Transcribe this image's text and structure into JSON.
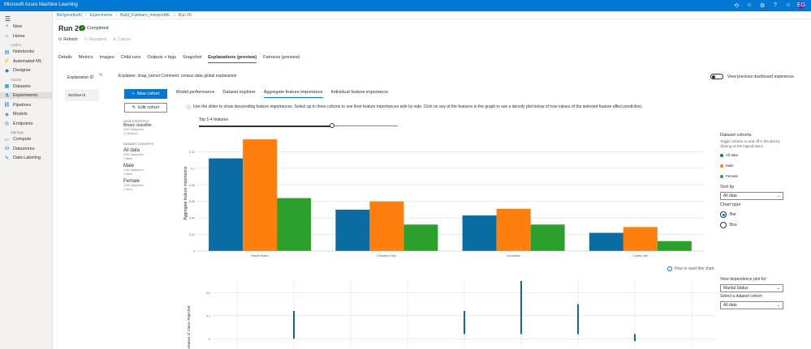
{
  "app": {
    "title": "Microsoft Azure Machine Learning"
  },
  "topbar": {
    "avatar": "EG",
    "icons": [
      "history-icon",
      "smile-icon",
      "gear-icon",
      "help-icon",
      "smile-icon",
      "user-icon"
    ]
  },
  "sidebar": {
    "items": [
      {
        "label": "New",
        "icon": "+"
      },
      {
        "label": "Home",
        "icon": "⌂"
      },
      {
        "section": "Author"
      },
      {
        "label": "Notebooks",
        "icon": "▤"
      },
      {
        "label": "Automated ML",
        "icon": "⚡"
      },
      {
        "label": "Designer",
        "icon": "◆"
      },
      {
        "section": "Assets"
      },
      {
        "label": "Datasets",
        "icon": "▦"
      },
      {
        "label": "Experiments",
        "icon": "⚗",
        "active": true
      },
      {
        "label": "Pipelines",
        "icon": "⛓"
      },
      {
        "label": "Models",
        "icon": "◈"
      },
      {
        "label": "Endpoints",
        "icon": "◎"
      },
      {
        "section": "Manage"
      },
      {
        "label": "Compute",
        "icon": "▭"
      },
      {
        "label": "Datastores",
        "icon": "⛁"
      },
      {
        "label": "Data Labeling",
        "icon": "✎"
      }
    ]
  },
  "breadcrumb": [
    "BerlginsdevAI",
    "Experiments",
    "Build_Fairlearn_InterpretML",
    "Run 20"
  ],
  "run": {
    "title": "Run 20",
    "status": "Completed"
  },
  "actions": {
    "refresh": "Refresh",
    "resubmit": "Resubmit",
    "cancel": "Cancel"
  },
  "tabs": [
    "Details",
    "Metrics",
    "Images",
    "Child runs",
    "Outputs + logs",
    "Snapshot",
    "Explanations (preview)",
    "Fairness (preview)"
  ],
  "active_tab": "Explanations (preview)",
  "explanations": {
    "header": "Explanation ID",
    "id": "962f36e7d"
  },
  "explainer": {
    "label": "Explainer:",
    "value": "shap_kernel",
    "comment_label": "Comment:",
    "comment": "census data global explanation"
  },
  "toggle_label": "View previous dashboard experience",
  "buttons": {
    "new_cohort": "New cohort",
    "edit_cohort": "Edit cohort"
  },
  "stats": {
    "data_statistics": "DATA STATISTICS",
    "classifier": "Binary classifier",
    "datapoints": "3260 datapoints",
    "features": "12 features",
    "cohorts_title": "DATASET COHORTS",
    "cohorts": [
      {
        "name": "All data",
        "datapoints": "3260 datapoints",
        "filters": "0 filters"
      },
      {
        "name": "Male",
        "datapoints": "2164 datapoints",
        "filters": "1 filters"
      },
      {
        "name": "Female",
        "datapoints": "1096 datapoints",
        "filters": "1 filters"
      }
    ]
  },
  "subtabs": [
    "Model performance",
    "Dataset explorer",
    "Aggregate feature importance",
    "Individual feature importance"
  ],
  "active_subtab": "Aggregate feature importance",
  "hint": "Use the slider to show descending feature importances. Select up to three cohorts to see their feature importances side by side. Click on any of the features in the graph to see a density plot below of how values of the selected feature affect prediction.",
  "slider": {
    "label": "Top 1-4 features",
    "fraction": 0.67
  },
  "legend": {
    "title": "Dataset cohorts",
    "subtitle": "Toggle cohorts on and off in the plot by clicking on the legend items.",
    "items": [
      {
        "name": "All data",
        "color": "#0a6ca3"
      },
      {
        "name": "Male",
        "color": "#ff7f0e"
      },
      {
        "name": "Female",
        "color": "#2ca02c"
      }
    ]
  },
  "sort_by": {
    "label": "Sort by",
    "value": "All data"
  },
  "chart_type": {
    "label": "Chart type",
    "options": [
      "Bar",
      "Box"
    ],
    "selected": "Bar"
  },
  "how_to_read": "How to read this chart",
  "dependence": {
    "label": "View dependence plot for:",
    "value": "Marital Status",
    "cohort_label": "Select a dataset cohort:",
    "cohort_value": "All data"
  },
  "chart_data": [
    {
      "type": "bar",
      "ylabel": "Aggregate feature importance",
      "categories": [
        "Marital Status",
        "Education-Num",
        "Occupation",
        "Capital Gain"
      ],
      "series": [
        {
          "name": "All data",
          "color": "#0a6ca3",
          "values": [
            0.112,
            0.05,
            0.043,
            0.022
          ]
        },
        {
          "name": "Male",
          "color": "#ff7f0e",
          "values": [
            0.135,
            0.06,
            0.051,
            0.029
          ]
        },
        {
          "name": "Female",
          "color": "#2ca02c",
          "values": [
            0.064,
            0.032,
            0.032,
            0.012
          ]
        }
      ],
      "yticks": [
        "0",
        "0.02",
        "0.04",
        "0.06",
        "0.08",
        "0.1",
        "0.12"
      ],
      "ylim": [
        0,
        0.14
      ]
    },
    {
      "type": "scatter",
      "ylabel": "Importance of Class: Rejected",
      "yticks": [
        "0",
        "0.1",
        "0.2"
      ],
      "ylim": [
        -0.02,
        0.25
      ],
      "points": [
        {
          "x": 1,
          "y": [
            0.0,
            0.12
          ]
        },
        {
          "x": 4,
          "y": [
            0.02,
            0.12
          ]
        },
        {
          "x": 5,
          "y": [
            0.02,
            0.25
          ]
        },
        {
          "x": 6,
          "y": [
            0.02,
            0.15
          ]
        },
        {
          "x": 7,
          "y": [
            -0.01,
            0.02
          ]
        }
      ]
    }
  ]
}
